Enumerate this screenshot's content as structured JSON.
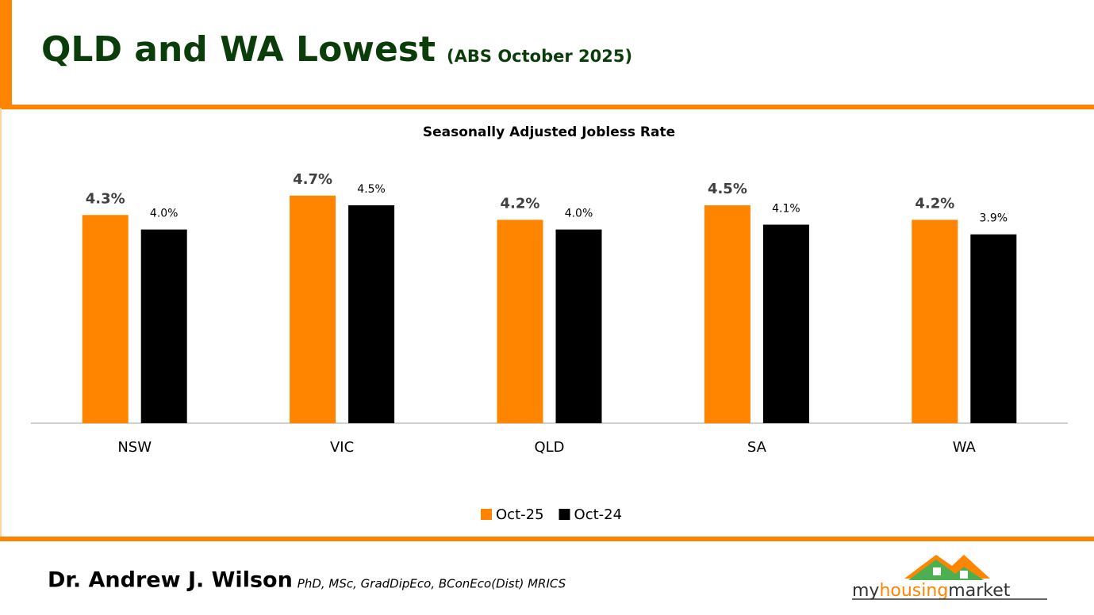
{
  "slide": {
    "title": "QLD and WA Lowest",
    "subtitle": "(ABS October 2025)",
    "author": "Dr. Andrew J. Wilson",
    "credentials": "PhD, MSc, GradDipEco, BConEco(Dist) MRICS",
    "logo": [
      "my",
      "housing",
      "market"
    ]
  },
  "chart_data": {
    "type": "bar",
    "title": "Seasonally Adjusted Jobless Rate",
    "categories": [
      "NSW",
      "VIC",
      "QLD",
      "SA",
      "WA"
    ],
    "series": [
      {
        "name": "Oct-25",
        "color": "#ff8500",
        "values": [
          4.3,
          4.7,
          4.2,
          4.5,
          4.2
        ],
        "value_labels": [
          "4.3%",
          "4.7%",
          "4.2%",
          "4.5%",
          "4.2%"
        ]
      },
      {
        "name": "Oct-24",
        "color": "#000000",
        "values": [
          4.0,
          4.5,
          4.0,
          4.1,
          3.9
        ],
        "value_labels": [
          "4.0%",
          "4.5%",
          "4.0%",
          "4.1%",
          "3.9%"
        ]
      }
    ],
    "ylim": [
      0,
      5
    ],
    "grid": false,
    "legend": "bottom"
  }
}
